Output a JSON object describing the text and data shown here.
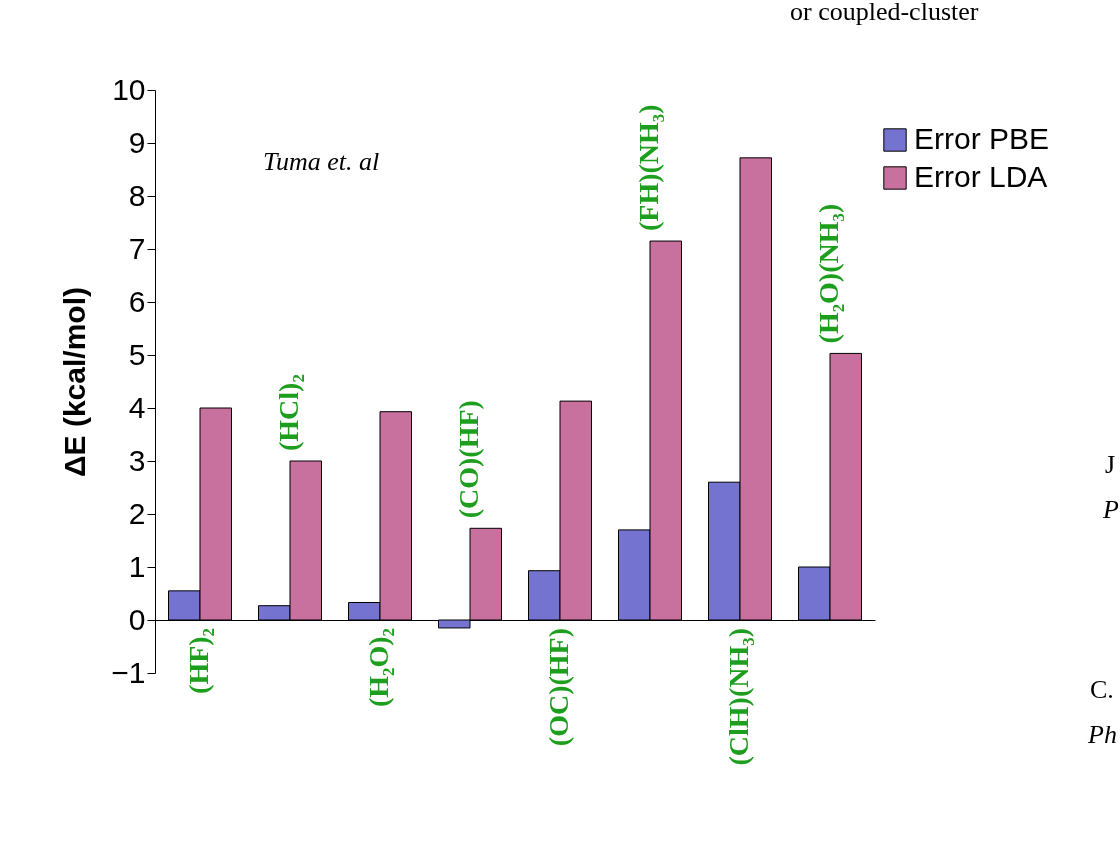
{
  "chart_data": {
    "type": "bar",
    "ylabel": "ΔE (kcal/mol)",
    "categories": [
      "(HF)₂",
      "(HCl)₂",
      "(H₂O)₂",
      "(CO)(HF)",
      "(OC)(HF)",
      "(FH)(NH₃)",
      "(ClH)(NH₃)",
      "(H₂O)(NH₃)"
    ],
    "series": [
      {
        "name": "Error PBE",
        "color": "#7474d0",
        "values": [
          0.55,
          0.27,
          0.33,
          -0.15,
          0.93,
          1.7,
          2.6,
          1.0
        ]
      },
      {
        "name": "Error LDA",
        "color": "#c8709e",
        "values": [
          4.0,
          3.0,
          3.93,
          1.73,
          4.13,
          7.15,
          8.72,
          5.03
        ]
      }
    ],
    "ylim": [
      -1,
      10
    ],
    "yticks": [
      -1,
      0,
      1,
      2,
      3,
      4,
      5,
      6,
      7,
      8,
      9,
      10
    ],
    "grid": false,
    "legend": "top right",
    "annotations": [
      "Tuma et. al",
      "or coupled-cluster",
      "J",
      "P",
      "C.",
      "Ph"
    ]
  }
}
